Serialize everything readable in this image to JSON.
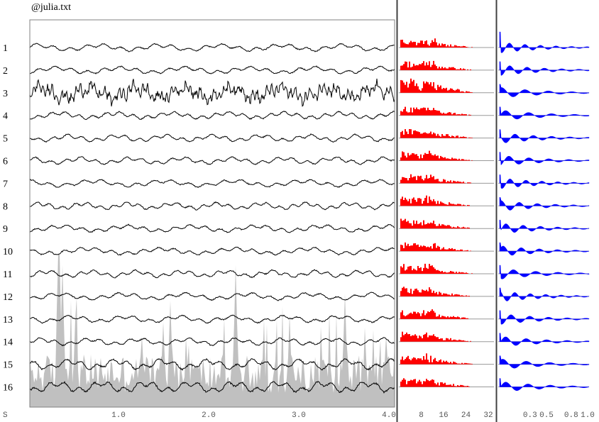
{
  "file_title": "@julia.txt",
  "colors": {
    "eeg_trace": "#000000",
    "background_spectrum": "#c0c0c0",
    "spectrum_bars": "#ff0000",
    "autocorrelation": "#0000ff",
    "frame": "#000000",
    "baseline": "#999999"
  },
  "chart_data": [
    {
      "type": "line",
      "panel": "eeg-traces",
      "series": [
        {
          "name": "1"
        },
        {
          "name": "2"
        },
        {
          "name": "3"
        },
        {
          "name": "4"
        },
        {
          "name": "5"
        },
        {
          "name": "6"
        },
        {
          "name": "7"
        },
        {
          "name": "8"
        },
        {
          "name": "9"
        },
        {
          "name": "10"
        },
        {
          "name": "11"
        },
        {
          "name": "12"
        },
        {
          "name": "13"
        },
        {
          "name": "14"
        },
        {
          "name": "15"
        },
        {
          "name": "16"
        }
      ],
      "x_unit_label": "S",
      "x_ticks": [
        "1.0",
        "2.0",
        "3.0",
        "4.0"
      ],
      "xlim": [
        0,
        4.0
      ]
    },
    {
      "type": "bar",
      "panel": "power-spectra",
      "x_ticks": [
        "8",
        "16",
        "24",
        "32"
      ],
      "xlim": [
        0,
        32
      ]
    },
    {
      "type": "area",
      "panel": "autocorrelation",
      "x_ticks": [
        "0.3",
        "0.5",
        "0.8",
        "1.0"
      ],
      "xlim": [
        0,
        1.0
      ]
    }
  ]
}
